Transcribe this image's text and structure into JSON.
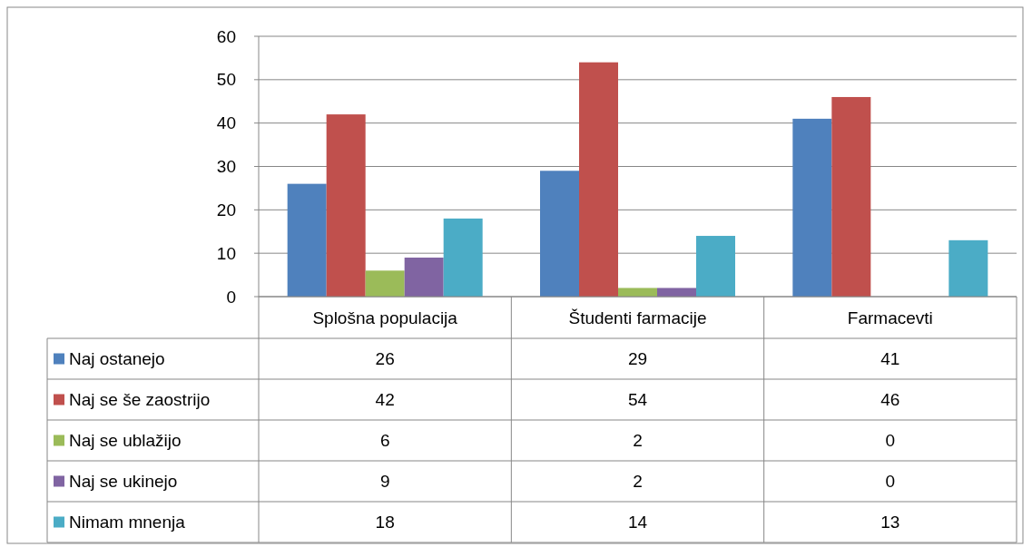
{
  "chart_data": {
    "type": "bar",
    "categories": [
      "Splošna populacija",
      "Študenti farmacije",
      "Farmacevti"
    ],
    "series": [
      {
        "name": "Naj ostanejo",
        "color": "#4f81bd",
        "values": [
          26,
          29,
          41
        ]
      },
      {
        "name": "Naj se še zaostrijo",
        "color": "#c0504d",
        "values": [
          42,
          54,
          46
        ]
      },
      {
        "name": "Naj se ublažijo",
        "color": "#9bbb59",
        "values": [
          6,
          2,
          0
        ]
      },
      {
        "name": "Naj se ukinejo",
        "color": "#8064a2",
        "values": [
          9,
          2,
          0
        ]
      },
      {
        "name": "Nimam mnenja",
        "color": "#4bacc6",
        "values": [
          18,
          14,
          13
        ]
      }
    ],
    "ylim": [
      0,
      60
    ],
    "yticks": [
      0,
      10,
      20,
      30,
      40,
      50,
      60
    ],
    "grid": "y",
    "legend": "bottom",
    "data_labels": true
  }
}
